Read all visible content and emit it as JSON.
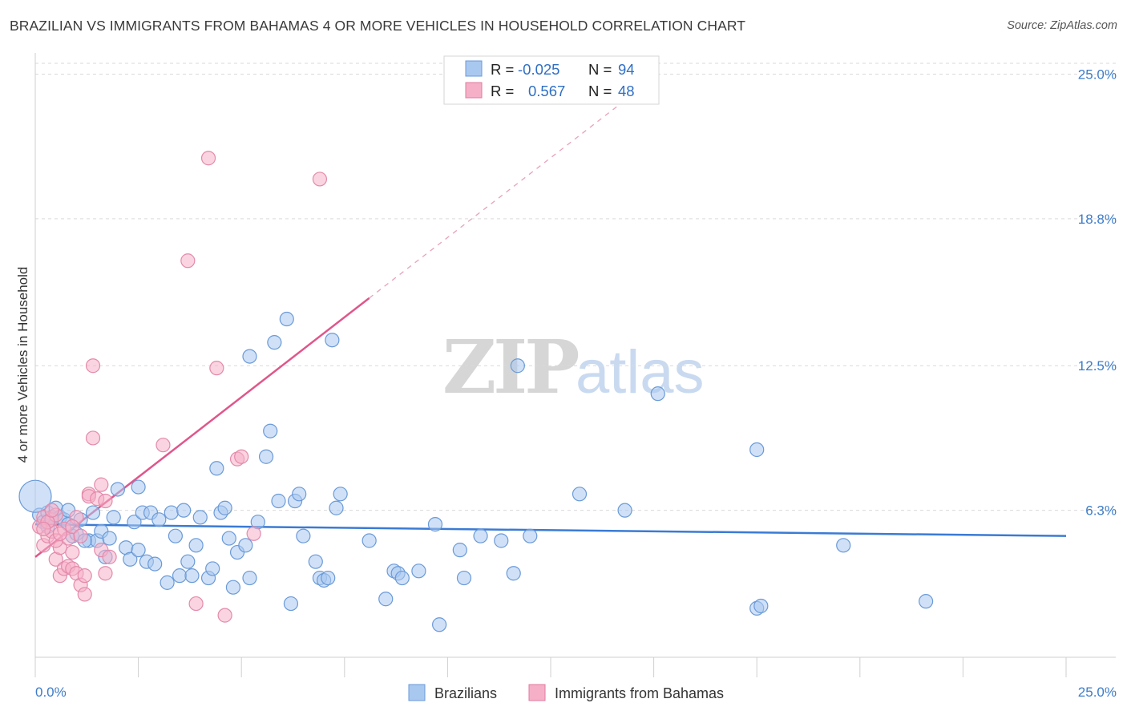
{
  "title": "BRAZILIAN VS IMMIGRANTS FROM BAHAMAS 4 OR MORE VEHICLES IN HOUSEHOLD CORRELATION CHART",
  "source": "Source: ZipAtlas.com",
  "watermark": {
    "zip": "ZIP",
    "atlas": "atlas"
  },
  "colors": {
    "blue": "#3a7bd5",
    "blue_fill": "#a9c8f0",
    "pink": "#e0568a",
    "pink_fill": "#f5b0c8",
    "tick": "#3d7cc9",
    "grid": "#d9d9d9"
  },
  "legend": {
    "rows": [
      {
        "r_label": "R =",
        "r_value": "-0.025",
        "n_label": "N =",
        "n_value": "94"
      },
      {
        "r_label": "R =",
        "r_value": "0.567",
        "n_label": "N =",
        "n_value": "48"
      }
    ]
  },
  "chart_data": {
    "type": "scatter",
    "title": "BRAZILIAN VS IMMIGRANTS FROM BAHAMAS 4 OR MORE VEHICLES IN HOUSEHOLD CORRELATION CHART",
    "xlabel": "",
    "ylabel": "4 or more Vehicles in Household",
    "xlim": [
      0,
      25
    ],
    "ylim": [
      0,
      25.6
    ],
    "x_tick_labels": [
      "0.0%",
      "25.0%"
    ],
    "y_ticks": [
      6.3,
      12.5,
      18.8,
      25.0
    ],
    "y_tick_labels": [
      "6.3%",
      "12.5%",
      "18.8%",
      "25.0%"
    ],
    "grid": "horizontal dashed",
    "legend_position": "bottom-center",
    "series": [
      {
        "name": "Brazilians",
        "r": -0.025,
        "n": 94,
        "trend": {
          "x": [
            0,
            25
          ],
          "y": [
            5.7,
            5.2
          ]
        },
        "points": [
          [
            0.1,
            6.1
          ],
          [
            0.2,
            5.8
          ],
          [
            0.3,
            6.2
          ],
          [
            0.3,
            5.6
          ],
          [
            0.4,
            6.0
          ],
          [
            0.5,
            6.4
          ],
          [
            0.6,
            6.0
          ],
          [
            0.7,
            5.9
          ],
          [
            0.8,
            6.3
          ],
          [
            0.9,
            5.2
          ],
          [
            1.0,
            5.3
          ],
          [
            1.1,
            5.9
          ],
          [
            1.3,
            5.0
          ],
          [
            1.4,
            6.2
          ],
          [
            1.5,
            5.0
          ],
          [
            1.6,
            5.4
          ],
          [
            1.7,
            4.3
          ],
          [
            1.8,
            5.1
          ],
          [
            1.9,
            6.0
          ],
          [
            2.0,
            7.2
          ],
          [
            2.2,
            4.7
          ],
          [
            2.3,
            4.2
          ],
          [
            2.4,
            5.8
          ],
          [
            2.5,
            4.6
          ],
          [
            2.5,
            7.3
          ],
          [
            2.6,
            6.2
          ],
          [
            2.7,
            4.1
          ],
          [
            2.8,
            6.2
          ],
          [
            2.9,
            4.0
          ],
          [
            3.0,
            5.9
          ],
          [
            3.2,
            3.2
          ],
          [
            3.3,
            6.2
          ],
          [
            3.4,
            5.2
          ],
          [
            3.5,
            3.5
          ],
          [
            3.6,
            6.3
          ],
          [
            3.7,
            4.1
          ],
          [
            3.8,
            3.5
          ],
          [
            3.9,
            4.8
          ],
          [
            4.0,
            6.0
          ],
          [
            4.2,
            3.4
          ],
          [
            4.3,
            3.8
          ],
          [
            4.4,
            8.1
          ],
          [
            4.5,
            6.2
          ],
          [
            4.6,
            6.4
          ],
          [
            4.7,
            5.1
          ],
          [
            4.8,
            3.0
          ],
          [
            4.9,
            4.5
          ],
          [
            5.1,
            4.8
          ],
          [
            5.2,
            3.4
          ],
          [
            5.2,
            12.9
          ],
          [
            5.4,
            5.8
          ],
          [
            5.6,
            8.6
          ],
          [
            5.7,
            9.7
          ],
          [
            5.8,
            13.5
          ],
          [
            5.9,
            6.7
          ],
          [
            6.1,
            14.5
          ],
          [
            6.2,
            2.3
          ],
          [
            6.3,
            6.7
          ],
          [
            6.4,
            7.0
          ],
          [
            6.5,
            5.2
          ],
          [
            6.8,
            4.1
          ],
          [
            6.9,
            3.4
          ],
          [
            7.0,
            3.3
          ],
          [
            7.1,
            3.4
          ],
          [
            7.2,
            13.6
          ],
          [
            7.3,
            6.4
          ],
          [
            7.4,
            7.0
          ],
          [
            8.1,
            5.0
          ],
          [
            8.5,
            2.5
          ],
          [
            8.7,
            3.7
          ],
          [
            8.8,
            3.6
          ],
          [
            8.9,
            3.4
          ],
          [
            9.3,
            3.7
          ],
          [
            9.7,
            5.7
          ],
          [
            9.8,
            1.4
          ],
          [
            10.3,
            4.6
          ],
          [
            10.4,
            3.4
          ],
          [
            10.8,
            5.2
          ],
          [
            11.3,
            5.0
          ],
          [
            11.6,
            3.6
          ],
          [
            11.7,
            12.5
          ],
          [
            12.0,
            5.2
          ],
          [
            13.2,
            7.0
          ],
          [
            14.3,
            6.3
          ],
          [
            15.1,
            11.3
          ],
          [
            17.5,
            8.9
          ],
          [
            17.5,
            2.1
          ],
          [
            17.6,
            2.2
          ],
          [
            19.6,
            4.8
          ],
          [
            21.6,
            2.4
          ],
          [
            0.0,
            6.9
          ],
          [
            0.4,
            5.9
          ],
          [
            1.2,
            5.0
          ],
          [
            0.8,
            5.7
          ]
        ]
      },
      {
        "name": "Immigrants from Bahamas",
        "r": 0.567,
        "n": 48,
        "trend": {
          "x": [
            0,
            8.1
          ],
          "y": [
            4.3,
            15.4
          ]
        },
        "trend_extension": {
          "x": [
            8.1,
            14.1
          ],
          "y": [
            15.4,
            23.6
          ]
        },
        "points": [
          [
            0.1,
            5.6
          ],
          [
            0.2,
            6.0
          ],
          [
            0.2,
            4.8
          ],
          [
            0.3,
            5.2
          ],
          [
            0.4,
            5.9
          ],
          [
            0.4,
            5.4
          ],
          [
            0.5,
            6.1
          ],
          [
            0.5,
            4.2
          ],
          [
            0.6,
            4.7
          ],
          [
            0.6,
            3.5
          ],
          [
            0.7,
            5.5
          ],
          [
            0.7,
            3.8
          ],
          [
            0.8,
            3.9
          ],
          [
            0.8,
            5.1
          ],
          [
            0.9,
            3.8
          ],
          [
            0.9,
            4.5
          ],
          [
            1.0,
            3.6
          ],
          [
            1.0,
            6.0
          ],
          [
            1.1,
            3.1
          ],
          [
            1.2,
            3.5
          ],
          [
            1.2,
            2.7
          ],
          [
            1.3,
            7.0
          ],
          [
            1.3,
            6.9
          ],
          [
            1.4,
            12.5
          ],
          [
            1.4,
            9.4
          ],
          [
            1.5,
            6.8
          ],
          [
            1.6,
            4.6
          ],
          [
            1.6,
            7.4
          ],
          [
            1.7,
            6.7
          ],
          [
            1.7,
            3.6
          ],
          [
            1.8,
            4.3
          ],
          [
            3.1,
            9.1
          ],
          [
            3.7,
            17.0
          ],
          [
            3.9,
            2.3
          ],
          [
            4.2,
            21.4
          ],
          [
            4.4,
            12.4
          ],
          [
            4.6,
            1.8
          ],
          [
            4.9,
            8.5
          ],
          [
            5.0,
            8.6
          ],
          [
            5.3,
            5.3
          ],
          [
            6.9,
            20.5
          ],
          [
            0.3,
            5.8
          ],
          [
            0.5,
            5.0
          ],
          [
            0.2,
            5.5
          ],
          [
            0.9,
            5.6
          ],
          [
            0.4,
            6.3
          ],
          [
            1.1,
            5.2
          ],
          [
            0.6,
            5.3
          ]
        ]
      }
    ]
  }
}
